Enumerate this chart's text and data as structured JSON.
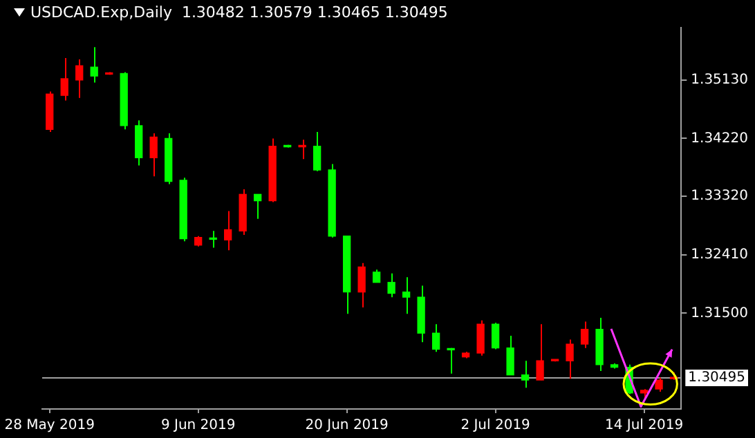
{
  "chart_data": {
    "type": "candlestick",
    "title": "USDCAD.Exp,Daily  1.30482 1.30579 1.30465 1.30495",
    "categories": [
      "28 May 2019",
      null,
      null,
      null,
      null,
      null,
      null,
      null,
      null,
      null,
      "9 Jun 2019",
      null,
      null,
      null,
      null,
      null,
      null,
      null,
      null,
      null,
      "20 Jun 2019",
      null,
      null,
      null,
      null,
      null,
      null,
      null,
      null,
      null,
      "2 Jul 2019",
      null,
      null,
      null,
      null,
      null,
      null,
      null,
      null,
      null,
      "14 Jul 2019",
      null,
      null
    ],
    "ohlc": [
      [
        1.3436,
        1.3495,
        1.3432,
        1.3491
      ],
      [
        1.3489,
        1.3547,
        1.3481,
        1.3515
      ],
      [
        1.3513,
        1.3545,
        1.3485,
        1.3535
      ],
      [
        1.3533,
        1.3564,
        1.3509,
        1.3519
      ],
      [
        1.3522,
        1.3525,
        1.3521,
        1.3523
      ],
      [
        1.3523,
        1.3525,
        1.3436,
        1.3442
      ],
      [
        1.3442,
        1.345,
        1.338,
        1.3392
      ],
      [
        1.3392,
        1.343,
        1.3363,
        1.3424
      ],
      [
        1.3422,
        1.343,
        1.3351,
        1.3355
      ],
      [
        1.3357,
        1.3361,
        1.3262,
        1.3266
      ],
      [
        1.3256,
        1.327,
        1.3254,
        1.3268
      ],
      [
        1.3267,
        1.3278,
        1.3252,
        1.3265
      ],
      [
        1.3264,
        1.3309,
        1.3248,
        1.328
      ],
      [
        1.3278,
        1.3343,
        1.3272,
        1.3335
      ],
      [
        1.3335,
        1.3335,
        1.3297,
        1.3325
      ],
      [
        1.3325,
        1.3422,
        1.3323,
        1.341
      ],
      [
        1.3411,
        1.3412,
        1.3408,
        1.3409
      ],
      [
        1.3409,
        1.342,
        1.339,
        1.3411
      ],
      [
        1.341,
        1.3432,
        1.3371,
        1.3373
      ],
      [
        1.3373,
        1.3382,
        1.3268,
        1.327
      ],
      [
        1.327,
        1.327,
        1.3149,
        1.3183
      ],
      [
        1.3183,
        1.3228,
        1.3159,
        1.3222
      ],
      [
        1.3214,
        1.3218,
        1.3198,
        1.3198
      ],
      [
        1.3198,
        1.3212,
        1.3175,
        1.3181
      ],
      [
        1.3183,
        1.3206,
        1.3149,
        1.3175
      ],
      [
        1.3175,
        1.3193,
        1.3105,
        1.3119
      ],
      [
        1.3119,
        1.3133,
        1.309,
        1.3094
      ],
      [
        1.3095,
        1.3096,
        1.3056,
        1.3093
      ],
      [
        1.3082,
        1.309,
        1.308,
        1.3088
      ],
      [
        1.3088,
        1.3139,
        1.3084,
        1.3133
      ],
      [
        1.3133,
        1.3135,
        1.3094,
        1.3096
      ],
      [
        1.3096,
        1.3115,
        1.3054,
        1.3054
      ],
      [
        1.3054,
        1.3076,
        1.3034,
        1.3046
      ],
      [
        1.3046,
        1.3133,
        1.3046,
        1.3076
      ],
      [
        1.3076,
        1.3078,
        1.3075,
        1.3077
      ],
      [
        1.3076,
        1.3109,
        1.3048,
        1.3102
      ],
      [
        1.3102,
        1.3137,
        1.3096,
        1.3125
      ],
      [
        1.3125,
        1.3143,
        1.306,
        1.307
      ],
      [
        1.307,
        1.3072,
        1.3064,
        1.3066
      ],
      [
        1.3066,
        1.307,
        1.3024,
        1.3026
      ],
      [
        1.3026,
        1.3032,
        1.3016,
        1.303
      ],
      [
        1.3032,
        1.305,
        1.3028,
        1.3046
      ],
      [
        1.30482,
        1.30579,
        1.30465,
        1.30495
      ]
    ],
    "colors": [
      "#ff0000",
      "#ff0000",
      "#ff0000",
      "#00ff00",
      "#ff0000",
      "#00ff00",
      "#00ff00",
      "#ff0000",
      "#00ff00",
      "#00ff00",
      "#ff0000",
      "#00ff00",
      "#ff0000",
      "#ff0000",
      "#00ff00",
      "#ff0000",
      "#00ff00",
      "#ff0000",
      "#00ff00",
      "#00ff00",
      "#00ff00",
      "#ff0000",
      "#00ff00",
      "#00ff00",
      "#00ff00",
      "#00ff00",
      "#00ff00",
      "#00ff00",
      "#ff0000",
      "#ff0000",
      "#00ff00",
      "#00ff00",
      "#00ff00",
      "#ff0000",
      "#ff0000",
      "#ff0000",
      "#ff0000",
      "#00ff00",
      "#00ff00",
      "#00ff00",
      "#ff0000",
      "#ff0000",
      "#ff0000"
    ],
    "ylim": [
      1.3001,
      1.3594
    ],
    "yticks": [
      {
        "value": 1.315,
        "label": "1.31500"
      },
      {
        "value": 1.3241,
        "label": "1.32410"
      },
      {
        "value": 1.3332,
        "label": "1.33320"
      },
      {
        "value": 1.3422,
        "label": "1.34220"
      },
      {
        "value": 1.3513,
        "label": "1.35130"
      }
    ],
    "ref_lines": [
      {
        "axis": "y",
        "value": 1.30495,
        "label": "1.30495",
        "color": "#a0a0a0"
      }
    ],
    "legend": false
  }
}
